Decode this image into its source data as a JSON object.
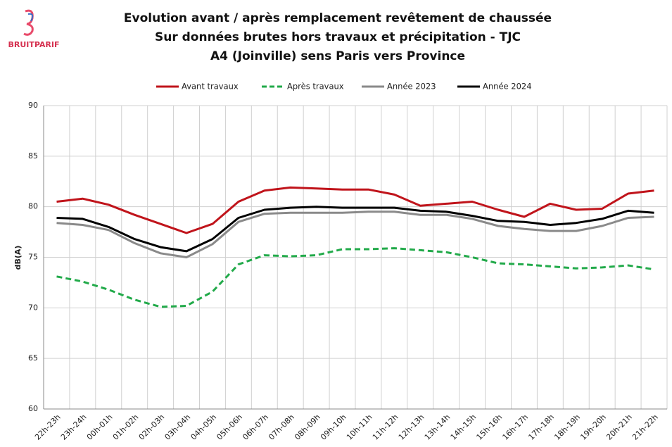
{
  "logo": "BRUITPARIF",
  "chart_data": {
    "type": "line",
    "title": [
      "Evolution avant / après remplacement revêtement de chaussée",
      "Sur données brutes hors travaux et précipitation - TJC",
      "A4 (Joinville) sens Paris vers Province"
    ],
    "y_label": "dB(A)",
    "categories": [
      "22h-23h",
      "23h-24h",
      "00h-01h",
      "01h-02h",
      "02h-03h",
      "03h-04h",
      "04h-05h",
      "05h-06h",
      "06h-07h",
      "07h-08h",
      "08h-09h",
      "09h-10h",
      "10h-11h",
      "11h-12h",
      "12h-13h",
      "13h-14h",
      "14h-15h",
      "15h-16h",
      "16h-17h",
      "17h-18h",
      "18h-19h",
      "19h-20h",
      "20h-21h",
      "21h-22h"
    ],
    "series": [
      {
        "name": "Avant travaux",
        "color": "#c0141b",
        "dashed": false,
        "values": [
          80.5,
          80.8,
          80.2,
          79.2,
          78.3,
          77.4,
          78.3,
          80.5,
          81.6,
          81.9,
          81.8,
          81.7,
          81.7,
          81.2,
          80.1,
          80.3,
          80.5,
          79.7,
          79.0,
          80.3,
          79.7,
          79.8,
          81.3,
          81.6
        ]
      },
      {
        "name": "Après travaux",
        "color": "#22aa4a",
        "dashed": true,
        "values": [
          73.1,
          72.6,
          71.8,
          70.8,
          70.1,
          70.2,
          71.6,
          74.3,
          75.2,
          75.1,
          75.2,
          75.8,
          75.8,
          75.9,
          75.7,
          75.5,
          75.0,
          74.4,
          74.3,
          74.1,
          73.9,
          74.0,
          74.2,
          73.8
        ]
      },
      {
        "name": "Année 2023",
        "color": "#8a8a8a",
        "dashed": false,
        "values": [
          78.4,
          78.2,
          77.7,
          76.4,
          75.4,
          75.0,
          76.3,
          78.5,
          79.3,
          79.4,
          79.4,
          79.4,
          79.5,
          79.5,
          79.2,
          79.2,
          78.8,
          78.1,
          77.8,
          77.6,
          77.6,
          78.1,
          78.9,
          79.0
        ]
      },
      {
        "name": "Année 2024",
        "color": "#000000",
        "dashed": false,
        "values": [
          78.9,
          78.8,
          78.0,
          76.8,
          76.0,
          75.6,
          76.8,
          78.9,
          79.7,
          79.9,
          80.0,
          79.9,
          79.9,
          79.9,
          79.6,
          79.5,
          79.1,
          78.6,
          78.5,
          78.2,
          78.4,
          78.8,
          79.6,
          79.4
        ]
      }
    ],
    "ylim": [
      60,
      90
    ],
    "yticks": [
      60,
      65,
      70,
      75,
      80,
      85,
      90
    ],
    "grid": true,
    "legend": "top"
  }
}
